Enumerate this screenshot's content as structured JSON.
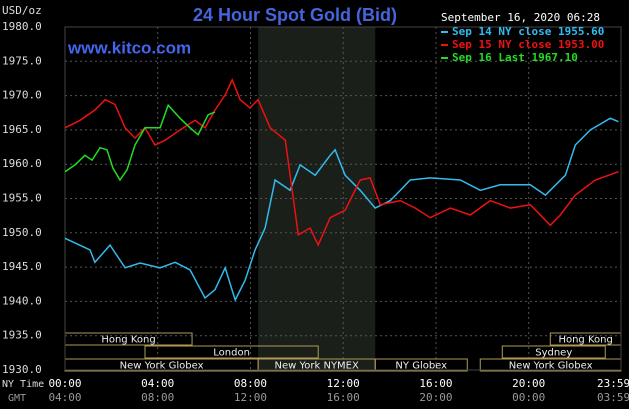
{
  "chart_data": {
    "type": "line",
    "title": "24 Hour Spot Gold (Bid)",
    "y_label": "USD/oz",
    "watermark": "www.kitco.com",
    "timestamp": "September 16, 2020 06:28",
    "x_row_label": "NY Time",
    "x2_row_label": "GMT",
    "xlim": [
      0,
      23.98
    ],
    "xticks": [
      {
        "value": 0,
        "label": "00:00"
      },
      {
        "value": 4,
        "label": "04:00"
      },
      {
        "value": 8,
        "label": "08:00"
      },
      {
        "value": 12,
        "label": "12:00"
      },
      {
        "value": 16,
        "label": "16:00"
      },
      {
        "value": 20,
        "label": "20:00"
      },
      {
        "value": 23.98,
        "label": "23:59"
      }
    ],
    "x2tick_labels": [
      "04:00",
      "08:00",
      "12:00",
      "16:00",
      "20:00",
      "00:00",
      "03:59"
    ],
    "ylim": [
      1930,
      1980
    ],
    "yticks": [
      {
        "value": 1930,
        "label": "1930.0"
      },
      {
        "value": 1935,
        "label": "1935.0"
      },
      {
        "value": 1940,
        "label": "1940.0"
      },
      {
        "value": 1945,
        "label": "1945.0"
      },
      {
        "value": 1950,
        "label": "1950.0"
      },
      {
        "value": 1955,
        "label": "1955.0"
      },
      {
        "value": 1960,
        "label": "1960.0"
      },
      {
        "value": 1965,
        "label": "1965.0"
      },
      {
        "value": 1970,
        "label": "1970.0"
      },
      {
        "value": 1975,
        "label": "1975.0"
      },
      {
        "value": 1980,
        "label": "1980.0"
      }
    ],
    "grid": true,
    "sessions": [
      {
        "name": "Hong Kong",
        "row": 0,
        "start": 0,
        "end": 5.48
      },
      {
        "name": "Hong Kong",
        "row": 0,
        "start": 20.93,
        "end": 23.98
      },
      {
        "name": "London",
        "row": 1,
        "start": 3.45,
        "end": 10.92
      },
      {
        "name": "Sydney",
        "row": 1,
        "start": 18.86,
        "end": 23.3
      },
      {
        "name": "New York Globex",
        "row": 2,
        "start": 0,
        "end": 8.33
      },
      {
        "name": "New York NYMEX",
        "row": 2,
        "start": 8.33,
        "end": 13.38,
        "shaded": true
      },
      {
        "name": "NY Globex",
        "row": 2,
        "start": 13.38,
        "end": 17.35
      },
      {
        "name": "New York Globex",
        "row": 2,
        "start": 17.91,
        "end": 23.98
      }
    ],
    "series": [
      {
        "name": "Sep 14 NY close 1955.60",
        "color": "#33bbee",
        "x": [
          0,
          1.08,
          1.29,
          1.94,
          2.59,
          3.24,
          4.1,
          4.75,
          5.39,
          6.04,
          6.47,
          6.91,
          7.34,
          7.77,
          8.2,
          8.63,
          9.06,
          9.71,
          10.14,
          10.79,
          11.44,
          11.65,
          12.08,
          12.73,
          13.38,
          14.03,
          14.89,
          15.75,
          17.05,
          17.91,
          18.77,
          20.07,
          20.72,
          21.58,
          22.01,
          22.66,
          23.52,
          23.87
        ],
        "values": [
          1949.2,
          1947.5,
          1945.7,
          1948.2,
          1944.9,
          1945.6,
          1944.9,
          1945.7,
          1944.6,
          1940.5,
          1941.7,
          1944.9,
          1940.2,
          1943.1,
          1947.5,
          1950.7,
          1957.7,
          1956.2,
          1959.9,
          1958.4,
          1961.3,
          1962.1,
          1958.4,
          1956.2,
          1953.6,
          1954.7,
          1957.7,
          1958.0,
          1957.7,
          1956.2,
          1957.0,
          1957.0,
          1955.5,
          1958.4,
          1962.8,
          1965.0,
          1966.7,
          1966.2
        ]
      },
      {
        "name": "Sep 15 NY close 1953.00",
        "color": "#ee1111",
        "x": [
          0,
          0.65,
          1.29,
          1.73,
          2.16,
          2.59,
          3.02,
          3.45,
          3.88,
          4.32,
          4.96,
          5.61,
          6.04,
          6.47,
          6.91,
          7.21,
          7.55,
          7.98,
          8.33,
          8.85,
          9.5,
          9.8,
          10.06,
          10.57,
          10.92,
          11.44,
          12.08,
          12.73,
          13.16,
          13.6,
          14.46,
          15.11,
          15.75,
          16.62,
          17.48,
          18.34,
          19.21,
          20.07,
          20.93,
          21.36,
          22.01,
          22.87,
          23.87
        ],
        "values": [
          1965.3,
          1966.4,
          1967.9,
          1969.4,
          1968.7,
          1965.3,
          1963.8,
          1965.3,
          1962.8,
          1963.5,
          1965.0,
          1966.4,
          1965.3,
          1967.9,
          1970.1,
          1972.3,
          1969.4,
          1968.2,
          1969.4,
          1965.3,
          1963.5,
          1956.2,
          1949.7,
          1950.7,
          1948.2,
          1952.2,
          1953.3,
          1957.7,
          1958.0,
          1954.1,
          1954.7,
          1953.6,
          1952.2,
          1953.6,
          1952.6,
          1954.7,
          1953.6,
          1954.1,
          1951.1,
          1952.6,
          1955.5,
          1957.7,
          1958.9
        ]
      },
      {
        "name": "Sep 16 Last 1967.10",
        "color": "#22dd22",
        "x": [
          0,
          0.43,
          0.86,
          1.17,
          1.51,
          1.81,
          2.07,
          2.37,
          2.68,
          3.02,
          3.45,
          4.1,
          4.45,
          4.96,
          5.39,
          5.74,
          6.17,
          6.47
        ],
        "values": [
          1958.9,
          1959.9,
          1961.3,
          1960.6,
          1962.4,
          1962.1,
          1959.4,
          1957.7,
          1959.2,
          1962.8,
          1965.3,
          1965.3,
          1968.6,
          1966.7,
          1965.3,
          1964.3,
          1967.2,
          1967.6
        ]
      }
    ]
  }
}
